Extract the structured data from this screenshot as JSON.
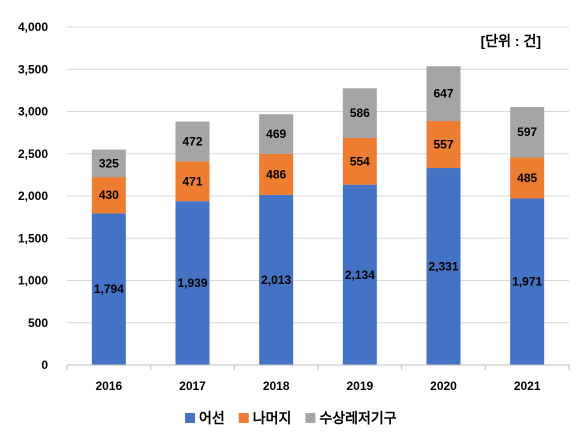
{
  "chart_data": {
    "type": "bar",
    "stacked": true,
    "categories": [
      "2016",
      "2017",
      "2018",
      "2019",
      "2020",
      "2021"
    ],
    "series": [
      {
        "name": "어선",
        "values": [
          1794,
          1939,
          2013,
          2134,
          2331,
          1971
        ],
        "color": "#4472C4",
        "labels": [
          "1,794",
          "1,939",
          "2,013",
          "2,134",
          "2,331",
          "1,971"
        ]
      },
      {
        "name": "나머지",
        "values": [
          430,
          471,
          486,
          554,
          557,
          485
        ],
        "color": "#ED7D31",
        "labels": [
          "430",
          "471",
          "486",
          "554",
          "557",
          "485"
        ]
      },
      {
        "name": "수상레저기구",
        "values": [
          325,
          472,
          469,
          586,
          647,
          597
        ],
        "color": "#A5A5A5",
        "labels": [
          "325",
          "472",
          "469",
          "586",
          "647",
          "597"
        ]
      }
    ],
    "ylim": [
      0,
      4000
    ],
    "yticks": [
      0,
      500,
      1000,
      1500,
      2000,
      2500,
      3000,
      3500,
      4000
    ],
    "ytick_labels": [
      "0",
      "500",
      "1,000",
      "1,500",
      "2,000",
      "2,500",
      "3,000",
      "3,500",
      "4,000"
    ],
    "unit_label": "[단위 : 건]",
    "grid": true,
    "legend_position": "bottom"
  }
}
